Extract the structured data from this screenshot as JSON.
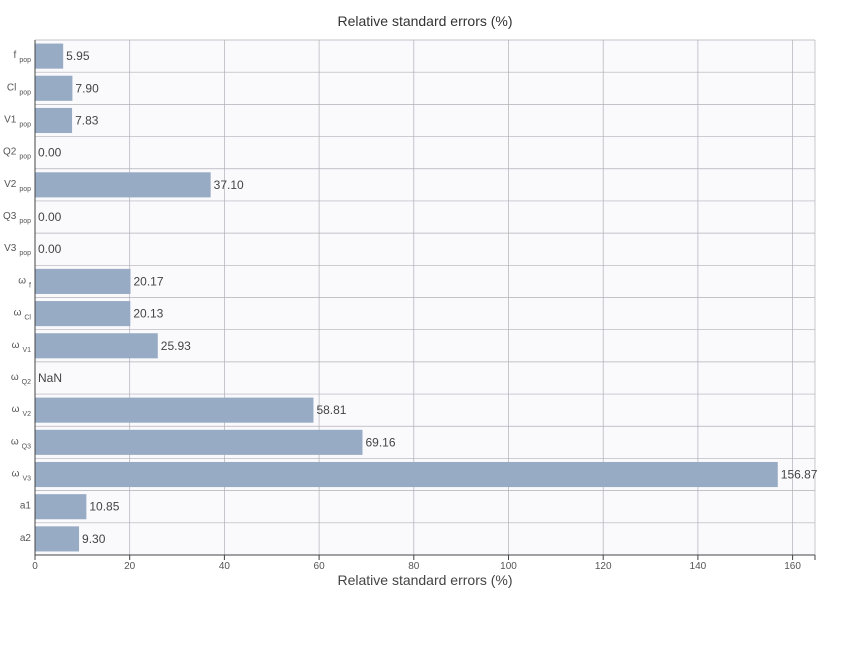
{
  "chart_data": {
    "type": "bar",
    "orientation": "horizontal",
    "title": "Relative standard errors (%)",
    "xlabel": "Relative standard errors (%)",
    "ylabel": "",
    "xlim": [
      0,
      165
    ],
    "xticks": [
      0,
      20,
      40,
      60,
      80,
      100,
      120,
      140,
      160
    ],
    "grid": true,
    "bar_color": "#98abc5",
    "categories": [
      {
        "main": "f",
        "sub": "pop"
      },
      {
        "main": "Cl",
        "sub": "pop"
      },
      {
        "main": "V1",
        "sub": "pop"
      },
      {
        "main": "Q2",
        "sub": "pop"
      },
      {
        "main": "V2",
        "sub": "pop"
      },
      {
        "main": "Q3",
        "sub": "pop"
      },
      {
        "main": "V3",
        "sub": "pop"
      },
      {
        "main": "ω",
        "sub": "f"
      },
      {
        "main": "ω",
        "sub": "Cl"
      },
      {
        "main": "ω",
        "sub": "V1"
      },
      {
        "main": "ω",
        "sub": "Q2"
      },
      {
        "main": "ω",
        "sub": "V2"
      },
      {
        "main": "ω",
        "sub": "Q3"
      },
      {
        "main": "ω",
        "sub": "V3"
      },
      {
        "main": "a1",
        "sub": ""
      },
      {
        "main": "a2",
        "sub": ""
      }
    ],
    "values": [
      5.95,
      7.9,
      7.83,
      0.0,
      37.1,
      0.0,
      0.0,
      20.17,
      20.13,
      25.93,
      null,
      58.81,
      69.16,
      156.87,
      10.85,
      9.3
    ],
    "value_labels": [
      "5.95",
      "7.90",
      "7.83",
      "0.00",
      "37.10",
      "0.00",
      "0.00",
      "20.17",
      "20.13",
      "25.93",
      "NaN",
      "58.81",
      "69.16",
      "156.87",
      "10.85",
      "9.30"
    ]
  }
}
